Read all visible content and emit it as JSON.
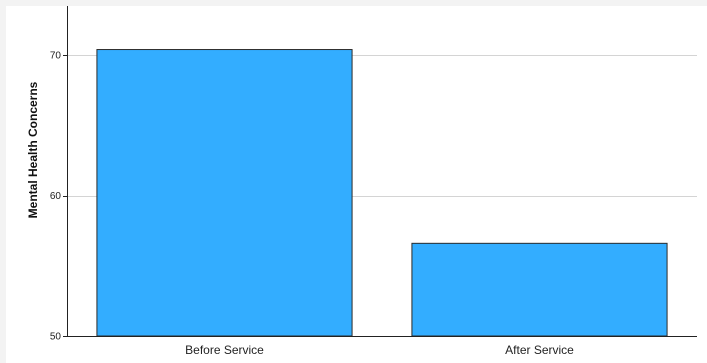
{
  "chart_data": {
    "type": "bar",
    "title": "",
    "xlabel": "",
    "ylabel": "Mental Health Concerns",
    "categories": [
      "Before Service",
      "After Service"
    ],
    "values": [
      70.4,
      56.6
    ],
    "ylim": [
      50,
      73.5
    ],
    "yticks": [
      50,
      60,
      70
    ],
    "grid": true,
    "bar_color": "#33adff",
    "bar_edge_color": "#2b2b2b",
    "grid_color": "#d4d4d4",
    "axis_color": "#222222"
  }
}
